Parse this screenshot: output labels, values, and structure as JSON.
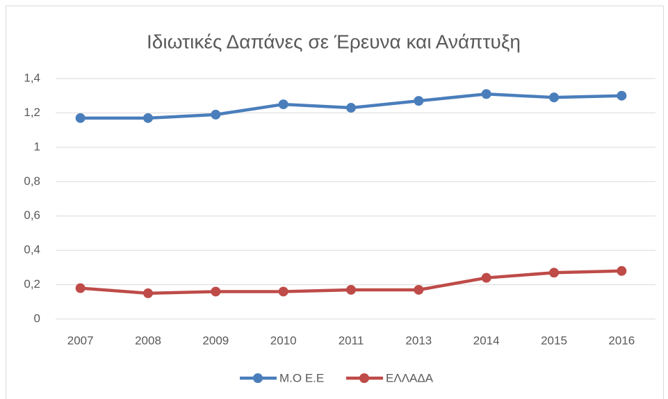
{
  "chart_data": {
    "type": "line",
    "title": "Ιδιωτικές Δαπάνες σε Έρευνα και Ανάπτυξη",
    "categories": [
      "2007",
      "2008",
      "2009",
      "2010",
      "2011",
      "2013",
      "2014",
      "2015",
      "2016"
    ],
    "series": [
      {
        "name": "Μ.Ο Ε.Ε",
        "color": "#4a7ebb",
        "values": [
          1.17,
          1.17,
          1.19,
          1.25,
          1.23,
          1.27,
          1.31,
          1.29,
          1.3
        ]
      },
      {
        "name": "ΕΛΛΑΔΑ",
        "color": "#be4b48",
        "values": [
          0.18,
          0.15,
          0.16,
          0.16,
          0.17,
          0.17,
          0.24,
          0.27,
          0.28
        ]
      }
    ],
    "ylim": [
      0,
      1.4
    ],
    "yticks": [
      0,
      {
        "value": 0.2,
        "label": "0,2"
      },
      {
        "value": 0.4,
        "label": "0,4"
      },
      {
        "value": 0.6,
        "label": "0,6"
      },
      {
        "value": 0.8,
        "label": "0,8"
      },
      1,
      {
        "value": 1.2,
        "label": "1,2"
      },
      {
        "value": 1.4,
        "label": "1,4"
      }
    ],
    "grid": true,
    "legend": "bottom"
  }
}
